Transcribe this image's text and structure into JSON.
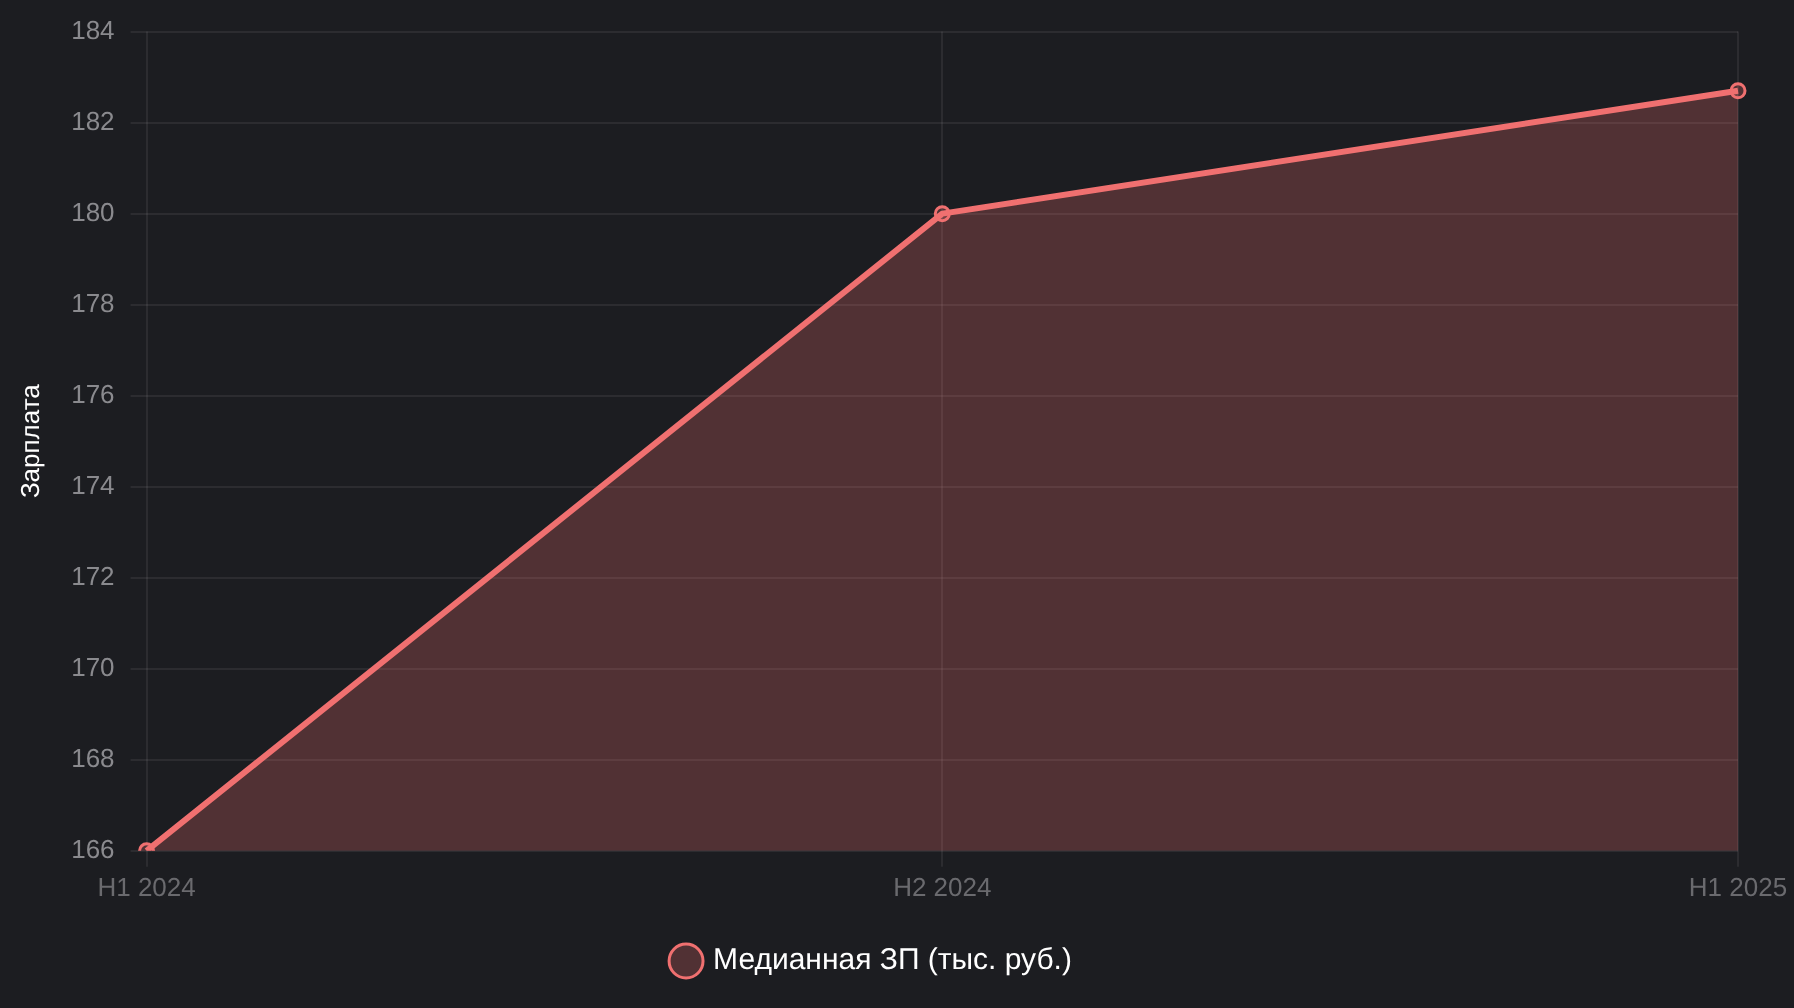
{
  "chart_data": {
    "type": "area",
    "ylabel": "Зарплата",
    "categories": [
      "H1 2024",
      "H2 2024",
      "H1 2025"
    ],
    "series": [
      {
        "name": "Медианная ЗП (тыс. руб.)",
        "color": "#f07070",
        "values": [
          166,
          180,
          182.7
        ]
      }
    ],
    "ylim": [
      166,
      184
    ],
    "yticks": [
      166,
      168,
      170,
      172,
      174,
      176,
      178,
      180,
      182,
      184
    ],
    "grid": true,
    "legend": "bottom",
    "marker": "circle",
    "line_style": "solid"
  }
}
